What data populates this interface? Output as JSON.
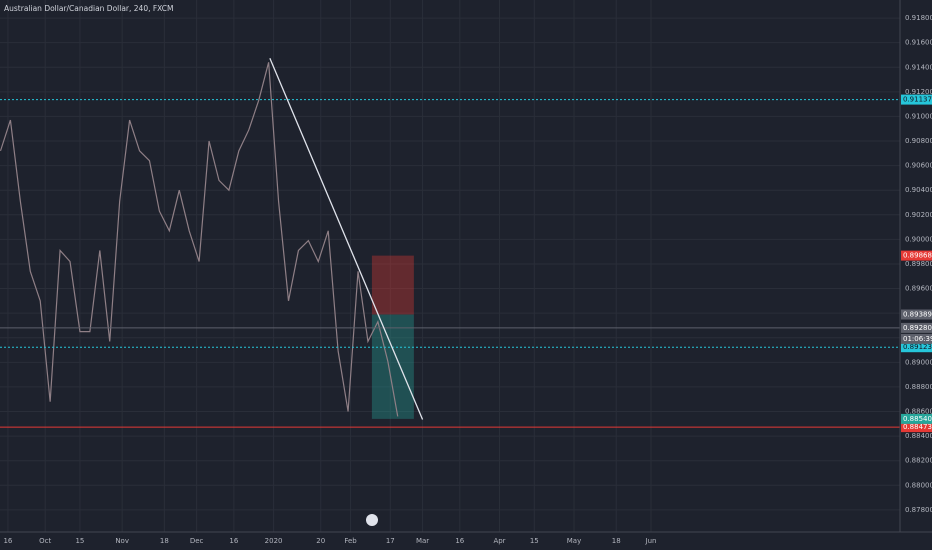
{
  "chart_data": {
    "type": "line",
    "title": "Australian Dollar/Canadian Dollar, 240, FXCM",
    "series": [
      {
        "color": "#8f7f86",
        "x": [
          12,
          16,
          20,
          24,
          28,
          32,
          36,
          40,
          44,
          48,
          52,
          56,
          60,
          64,
          68,
          72,
          76,
          80,
          84,
          88,
          92,
          96,
          100,
          104,
          108,
          112,
          116,
          120,
          124,
          128,
          132,
          136,
          140,
          144,
          148,
          152,
          156,
          160,
          164,
          168,
          172
        ],
        "values": [
          0.9072,
          0.9097,
          0.9031,
          0.8974,
          0.895,
          0.8868,
          0.8991,
          0.8982,
          0.8925,
          0.8925,
          0.8991,
          0.8917,
          0.9031,
          0.9097,
          0.9072,
          0.9064,
          0.9023,
          0.9007,
          0.904,
          0.9007,
          0.8982,
          0.908,
          0.9048,
          0.904,
          0.9072,
          0.9089,
          0.9113,
          0.9144,
          0.9031,
          0.895,
          0.8991,
          0.8999,
          0.8982,
          0.9007,
          0.8909,
          0.886,
          0.8974,
          0.8917,
          0.8933,
          0.8901,
          0.8856
        ]
      }
    ],
    "xlim": [
      11.8,
      374.3
    ],
    "ylim": [
      0.91947,
      0.8762
    ],
    "xticks": [
      {
        "value": 15,
        "label": "16"
      },
      {
        "value": 30,
        "label": "Oct"
      },
      {
        "value": 44,
        "label": "15"
      },
      {
        "value": 61,
        "label": "Nov"
      },
      {
        "value": 78,
        "label": "18"
      },
      {
        "value": 91,
        "label": "Dec"
      },
      {
        "value": 106,
        "label": "16"
      },
      {
        "value": 122,
        "label": "2020"
      },
      {
        "value": 141,
        "label": "20"
      },
      {
        "value": 153,
        "label": "Feb"
      },
      {
        "value": 169,
        "label": "17"
      },
      {
        "value": 182,
        "label": "Mar"
      },
      {
        "value": 197,
        "label": "16"
      },
      {
        "value": 213,
        "label": "Apr"
      },
      {
        "value": 227,
        "label": "15"
      },
      {
        "value": 243,
        "label": "May"
      },
      {
        "value": 260,
        "label": "18"
      },
      {
        "value": 274,
        "label": "Jun"
      }
    ],
    "yticks": [
      {
        "value": 0.918,
        "label": "0.91800"
      },
      {
        "value": 0.916,
        "label": "0.91600"
      },
      {
        "value": 0.914,
        "label": "0.91400"
      },
      {
        "value": 0.912,
        "label": "0.91200"
      },
      {
        "value": 0.91,
        "label": "0.91000"
      },
      {
        "value": 0.908,
        "label": "0.90800"
      },
      {
        "value": 0.906,
        "label": "0.90600"
      },
      {
        "value": 0.904,
        "label": "0.90400"
      },
      {
        "value": 0.902,
        "label": "0.90200"
      },
      {
        "value": 0.9,
        "label": "0.90000"
      },
      {
        "value": 0.898,
        "label": "0.89800"
      },
      {
        "value": 0.896,
        "label": "0.89600"
      },
      {
        "value": 0.894,
        "label": "0.89400"
      },
      {
        "value": 0.892,
        "label": "0.89200"
      },
      {
        "value": 0.89,
        "label": "0.89000"
      },
      {
        "value": 0.888,
        "label": "0.88800"
      },
      {
        "value": 0.886,
        "label": "0.88600"
      },
      {
        "value": 0.884,
        "label": "0.88400"
      },
      {
        "value": 0.882,
        "label": "0.88200"
      },
      {
        "value": 0.88,
        "label": "0.88000"
      },
      {
        "value": 0.878,
        "label": "0.87800"
      }
    ],
    "grid": true,
    "hlines": [
      {
        "value": 0.91137,
        "label": "0.91137",
        "color": "#26c6da",
        "style": "dotted"
      },
      {
        "value": 0.89123,
        "label": "0.89123",
        "color": "#26c6da",
        "style": "dotted"
      },
      {
        "value": 0.88473,
        "label": "0.88473",
        "color": "#e53935",
        "style": "solid"
      },
      {
        "value": 0.8928,
        "label": "0.89280",
        "color": "#5d606b",
        "style": "solid"
      }
    ],
    "countdown": "01:06:39",
    "trend_line": {
      "x": [
        120.5,
        182
      ],
      "values": [
        0.91473,
        0.88535
      ],
      "color": "#e0e3eb"
    },
    "position": {
      "xlim": [
        161.6,
        178.5
      ],
      "entry": {
        "value": 0.89389,
        "label": "0.89389",
        "color": "#5d606b"
      },
      "stop": {
        "value": 0.89868,
        "label": "0.89868",
        "color": "#e53935"
      },
      "target": {
        "value": 0.8854,
        "label": "0.88540",
        "color": "#26a69a"
      }
    }
  }
}
